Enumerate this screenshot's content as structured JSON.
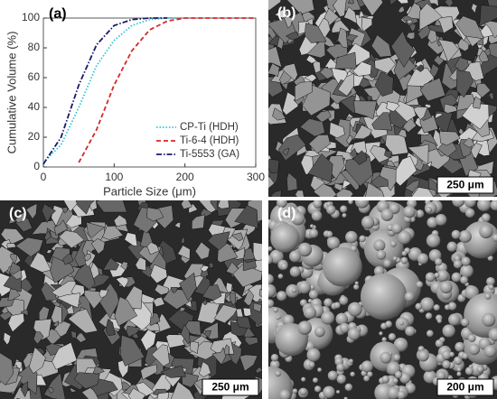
{
  "chart_data": {
    "type": "line",
    "xlabel": "Particle Size (μm)",
    "ylabel": "Cumulative Volume (%)",
    "x": [
      0,
      25,
      50,
      75,
      100,
      125,
      150,
      175,
      200,
      250,
      300
    ],
    "series": [
      {
        "name": "CP-Ti (HDH)",
        "color": "#2ec4d6",
        "style": "dotted",
        "values": [
          3,
          15,
          40,
          68,
          85,
          95,
          99,
          100,
          100,
          null,
          null
        ]
      },
      {
        "name": "Ti-6-4 (HDH)",
        "color": "#d62728",
        "style": "dashed",
        "values": [
          null,
          null,
          3,
          25,
          55,
          78,
          92,
          98,
          100,
          100,
          100
        ]
      },
      {
        "name": "Ti-5553 (GA)",
        "color": "#1a1a66",
        "style": "dashdot",
        "values": [
          2,
          20,
          55,
          82,
          95,
          99,
          100,
          100,
          null,
          null,
          null
        ]
      }
    ],
    "xlim": [
      0,
      300
    ],
    "xticks": [
      0,
      100,
      200,
      300
    ],
    "ylim": [
      0,
      100
    ],
    "yticks": [
      0,
      20,
      40,
      60,
      80,
      100
    ],
    "legend": "lower right"
  },
  "panels": [
    {
      "label": "(a)"
    },
    {
      "label": "(b)",
      "scale_bar": "250 μm"
    },
    {
      "label": "(c)",
      "scale_bar": "250 μm"
    },
    {
      "label": "(d)",
      "scale_bar": "200 μm"
    }
  ]
}
